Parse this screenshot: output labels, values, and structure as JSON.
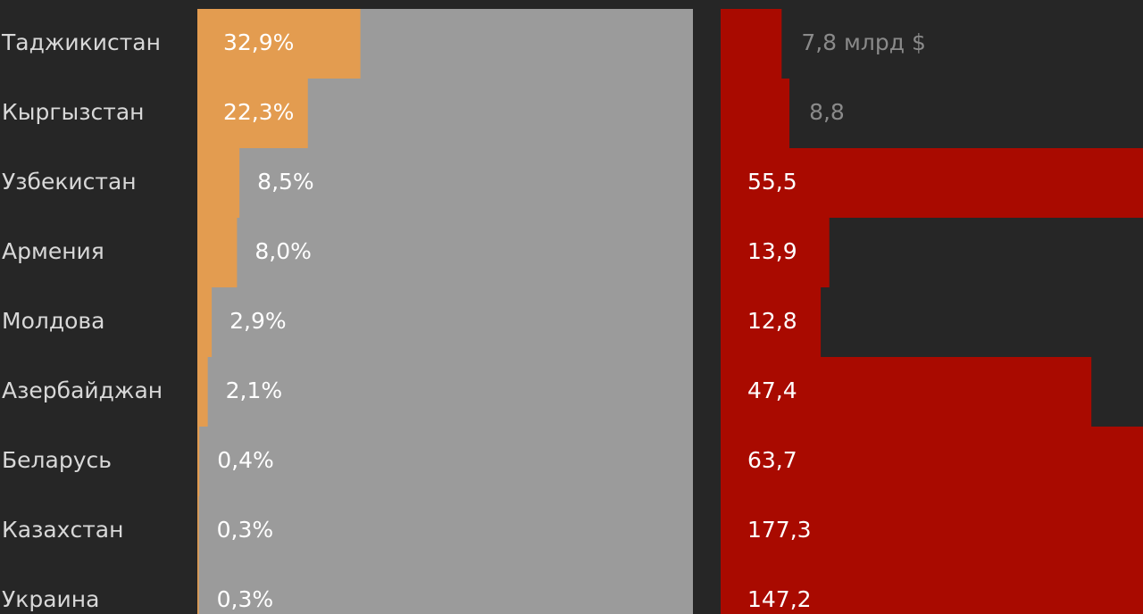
{
  "chart_data": [
    {
      "type": "bar",
      "categories": [
        "Таджикистан",
        "Кыргызстан",
        "Узбекистан",
        "Армения",
        "Молдова",
        "Азербайджан",
        "Беларусь",
        "Казахстан",
        "Украина"
      ],
      "values": [
        32.9,
        22.3,
        8.5,
        8.0,
        2.9,
        2.1,
        0.4,
        0.3,
        0.3
      ],
      "value_labels": [
        "32,9%",
        "22,3%",
        "8,5%",
        "8,0%",
        "2,9%",
        "2,1%",
        "0,4%",
        "0,3%",
        "0,3%"
      ],
      "color": "#e39c50",
      "background_color": "#9b9b9b",
      "xlim": [
        0,
        100
      ]
    },
    {
      "type": "bar",
      "values": [
        7.8,
        8.8,
        55.5,
        13.9,
        12.8,
        47.4,
        63.7,
        177.3,
        147.2
      ],
      "value_labels": [
        "7,8 млрд $",
        "8,8",
        "55,5",
        "13,9",
        "12,8",
        "47,4",
        "63,7",
        "177,3",
        "147,2"
      ],
      "color": "#a90a00",
      "xlim": [
        0,
        54
      ]
    }
  ]
}
